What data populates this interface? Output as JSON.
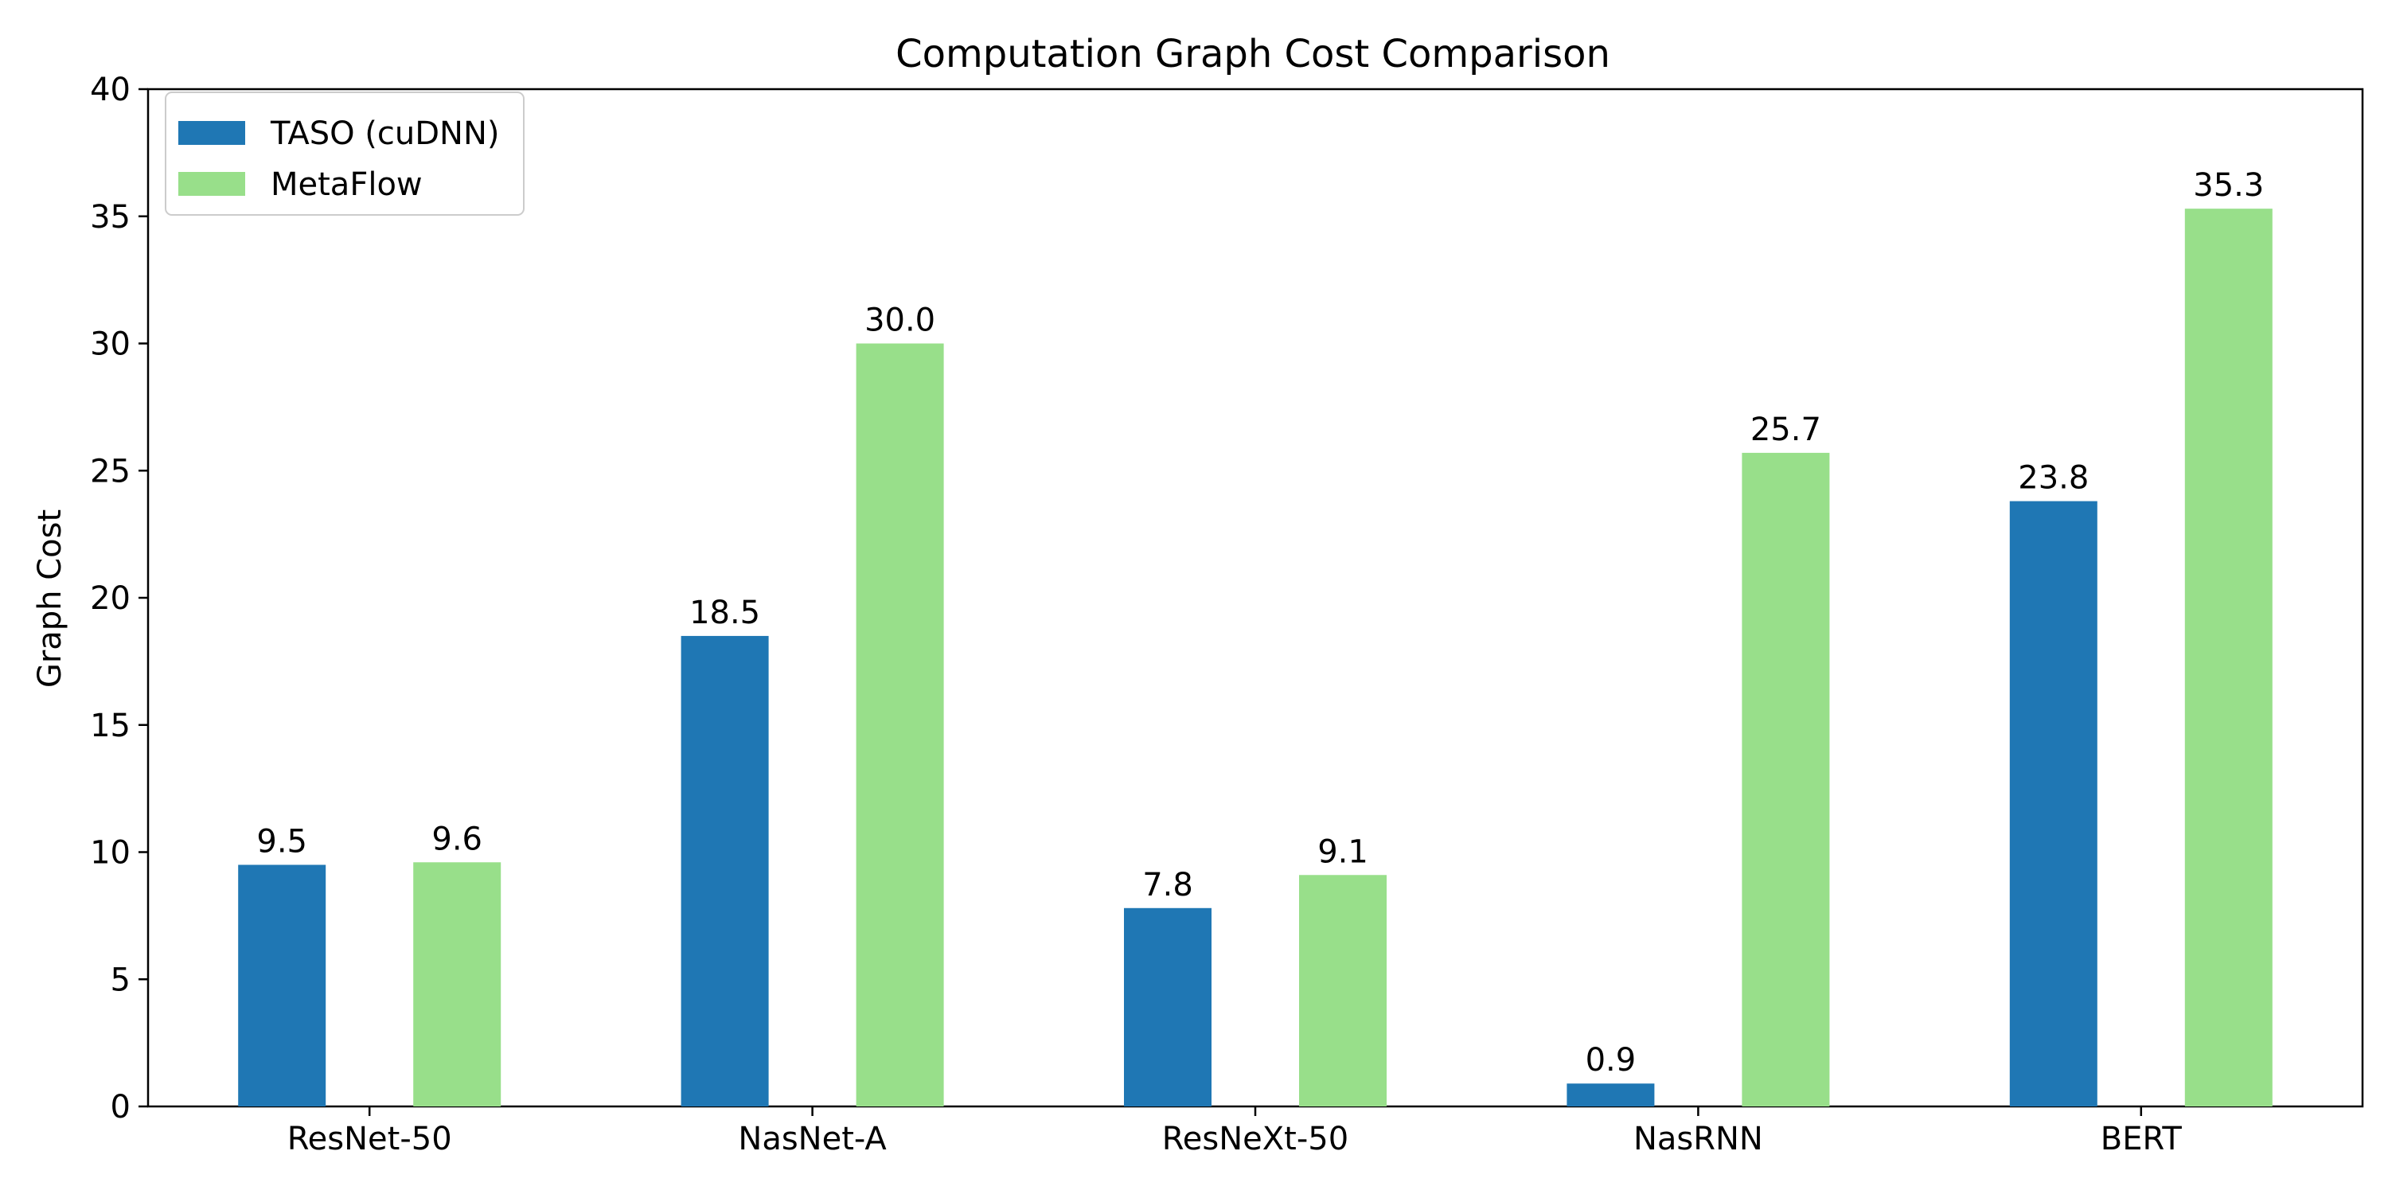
{
  "chart_data": {
    "type": "bar",
    "title": "Computation Graph Cost Comparison",
    "xlabel": "",
    "ylabel": "Graph Cost",
    "categories": [
      "ResNet-50",
      "NasNet-A",
      "ResNeXt-50",
      "NasRNN",
      "BERT"
    ],
    "series": [
      {
        "name": "TASO (cuDNN)",
        "color": "#1f77b4",
        "values": [
          9.5,
          18.5,
          7.8,
          0.9,
          23.8
        ],
        "labels": [
          "9.5",
          "18.5",
          "7.8",
          "0.9",
          "23.8"
        ]
      },
      {
        "name": "MetaFlow",
        "color": "#98df8a",
        "values": [
          9.6,
          30.0,
          9.1,
          25.7,
          35.3
        ],
        "labels": [
          "9.6",
          "30.0",
          "9.1",
          "25.7",
          "35.3"
        ]
      }
    ],
    "ylim": [
      0,
      40
    ],
    "yticks": [
      0,
      5,
      10,
      15,
      20,
      25,
      30,
      35,
      40
    ],
    "ytick_labels": [
      "0",
      "5",
      "10",
      "15",
      "20",
      "25",
      "30",
      "35",
      "40"
    ],
    "grid": false,
    "legend_position": "upper left"
  }
}
